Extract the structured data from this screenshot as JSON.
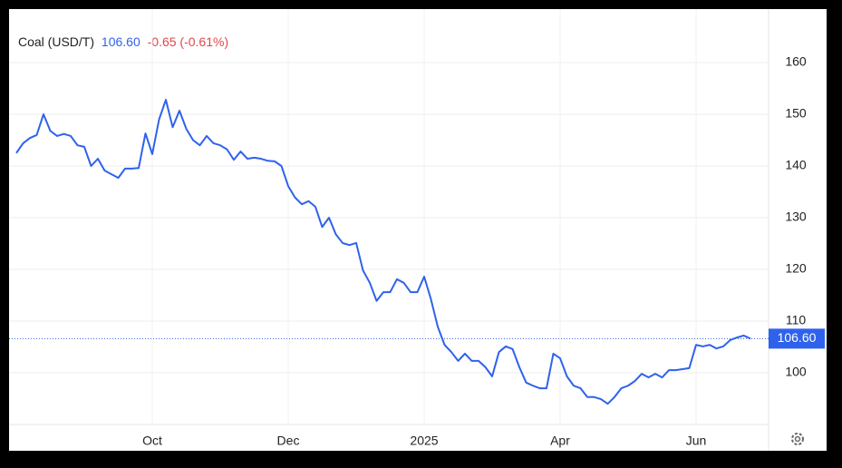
{
  "chart_data": {
    "type": "line",
    "title": "Coal (USD/T)",
    "change": "-0.65 (-0.61%)",
    "last_price": {
      "value": 106.6,
      "label": "106.60"
    },
    "categories": [
      null,
      null,
      null,
      null,
      null,
      null,
      null,
      null,
      null,
      null,
      null,
      null,
      null,
      null,
      null,
      null,
      null,
      null,
      null,
      null,
      "Oct",
      null,
      null,
      null,
      null,
      null,
      null,
      null,
      null,
      null,
      null,
      null,
      null,
      null,
      null,
      null,
      null,
      null,
      null,
      null,
      "Dec",
      null,
      null,
      null,
      null,
      null,
      null,
      null,
      null,
      null,
      null,
      null,
      null,
      null,
      null,
      null,
      null,
      null,
      null,
      null,
      "2025",
      null,
      null,
      null,
      null,
      null,
      null,
      null,
      null,
      null,
      null,
      null,
      null,
      null,
      null,
      null,
      null,
      null,
      null,
      null,
      "Apr",
      null,
      null,
      null,
      null,
      null,
      null,
      null,
      null,
      null,
      null,
      null,
      null,
      null,
      null,
      null,
      null,
      null,
      null,
      null,
      "Jun",
      null,
      null,
      null,
      null,
      null,
      null,
      null,
      null
    ],
    "series": [
      {
        "name": "Coal (USD/T)",
        "color": "#2f62ec",
        "values": [
          142.5,
          144.4,
          145.4,
          146,
          150,
          146.8,
          145.8,
          146.2,
          145.8,
          144,
          143.7,
          140,
          141.4,
          139.1,
          138.4,
          137.7,
          139.5,
          139.5,
          139.6,
          146.3,
          142.3,
          149,
          152.8,
          147.5,
          150.7,
          147.2,
          145,
          144,
          145.8,
          144.4,
          144,
          143.2,
          141.2,
          142.8,
          141.4,
          141.6,
          141.4,
          141,
          140.9,
          140,
          136.1,
          133.9,
          132.6,
          133.2,
          132.1,
          128.2,
          130,
          126.8,
          125.1,
          124.7,
          125.1,
          119.8,
          117.4,
          113.9,
          115.6,
          115.6,
          118.1,
          117.4,
          115.6,
          115.6,
          118.6,
          114.2,
          108.9,
          105.4,
          104,
          102.3,
          103.7,
          102.3,
          102.3,
          101.1,
          99.3,
          104,
          105.1,
          104.6,
          101.1,
          98.1,
          97.5,
          97,
          97,
          103.7,
          102.8,
          99.3,
          97.5,
          97,
          95.3,
          95.3,
          94.9,
          94,
          95.3,
          97,
          97.5,
          98.4,
          99.8,
          99.1,
          99.8,
          99.1,
          100.5,
          100.5,
          100.7,
          100.9,
          105.4,
          105.1,
          105.4,
          104.7,
          105.1,
          106.3,
          106.8,
          107.2,
          106.6
        ]
      }
    ],
    "ylim": [
      90,
      170
    ],
    "yticks": [
      100,
      110,
      120,
      130,
      140,
      150,
      160
    ],
    "grid": true
  }
}
